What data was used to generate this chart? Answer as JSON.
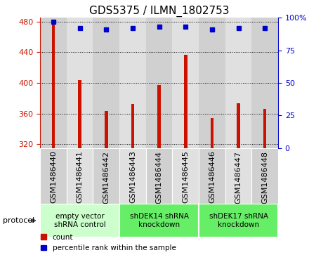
{
  "title": "GDS5375 / ILMN_1802753",
  "categories": [
    "GSM1486440",
    "GSM1486441",
    "GSM1486442",
    "GSM1486443",
    "GSM1486444",
    "GSM1486445",
    "GSM1486446",
    "GSM1486447",
    "GSM1486448"
  ],
  "counts": [
    476,
    404,
    363,
    372,
    397,
    437,
    354,
    373,
    366
  ],
  "percentile_ranks": [
    97,
    92,
    91,
    92,
    93,
    93,
    91,
    92,
    92
  ],
  "ylim_left": [
    315,
    485
  ],
  "yticks_left": [
    320,
    360,
    400,
    440,
    480
  ],
  "ylim_right": [
    0,
    100
  ],
  "yticks_right": [
    0,
    25,
    50,
    75,
    100
  ],
  "bar_color": "#cc1100",
  "dot_color": "#0000cc",
  "bar_bottom": 315,
  "groups": [
    {
      "label": "empty vector\nshRNA control",
      "indices": [
        0,
        1,
        2
      ],
      "color": "#ccffcc"
    },
    {
      "label": "shDEK14 shRNA\nknockdown",
      "indices": [
        3,
        4,
        5
      ],
      "color": "#66ee66"
    },
    {
      "label": "shDEK17 shRNA\nknockdown",
      "indices": [
        6,
        7,
        8
      ],
      "color": "#66ee66"
    }
  ],
  "legend_count_label": "count",
  "legend_pct_label": "percentile rank within the sample",
  "protocol_label": "protocol",
  "background_color": "#ffffff",
  "plot_bg_color": "#e8e8e8",
  "cell_color_odd": "#d0d0d0",
  "cell_color_even": "#e0e0e0",
  "grid_color": "#000000",
  "title_fontsize": 11,
  "tick_fontsize": 8,
  "bar_width": 0.12
}
